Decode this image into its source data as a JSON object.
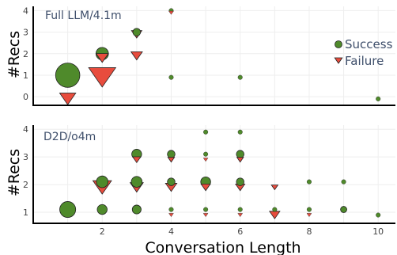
{
  "chart_data": {
    "type": "scatter",
    "xlabel": "Conversation Length",
    "ylabel": "#Recs",
    "xlim": [
      0,
      10.5
    ],
    "x_ticks": [
      2,
      4,
      6,
      8,
      10
    ],
    "grid": true,
    "legend_position": "right of top panel",
    "marker_size_meaning": "number of conversations",
    "colors": {
      "Success": "#4f8a2b",
      "Failure": "#e84c3d"
    },
    "legend": [
      {
        "label": "Success",
        "marker": "circle"
      },
      {
        "label": "Failure",
        "marker": "triangle-down"
      }
    ],
    "panels": [
      {
        "title": "Full LLM/4.1m",
        "ylim": [
          -0.4,
          4.2
        ],
        "y_ticks": [
          0,
          1,
          2,
          3,
          4
        ],
        "series": [
          {
            "name": "Success",
            "points": [
              {
                "x": 1,
                "y": 1,
                "size": 30
              },
              {
                "x": 2,
                "y": 2,
                "size": 8
              },
              {
                "x": 3,
                "y": 3,
                "size": 3
              },
              {
                "x": 4,
                "y": 4,
                "size": 1
              },
              {
                "x": 4,
                "y": 0.9,
                "size": 1
              },
              {
                "x": 6,
                "y": 0.9,
                "size": 1
              },
              {
                "x": 10,
                "y": -0.1,
                "size": 1
              }
            ]
          },
          {
            "name": "Failure",
            "points": [
              {
                "x": 1,
                "y": -0.1,
                "size": 12
              },
              {
                "x": 2,
                "y": 0.9,
                "size": 34
              },
              {
                "x": 2,
                "y": 1.8,
                "size": 7
              },
              {
                "x": 3,
                "y": 2.9,
                "size": 5
              },
              {
                "x": 3,
                "y": 1.9,
                "size": 6
              },
              {
                "x": 4,
                "y": 3.9,
                "size": 1
              }
            ]
          }
        ]
      },
      {
        "title": "D2D/o4m",
        "ylim": [
          0.6,
          4.15
        ],
        "y_ticks": [
          1,
          2,
          3,
          4
        ],
        "series": [
          {
            "name": "Success",
            "points": [
              {
                "x": 1,
                "y": 1.1,
                "size": 13
              },
              {
                "x": 2,
                "y": 2.1,
                "size": 7
              },
              {
                "x": 2,
                "y": 1.1,
                "size": 5
              },
              {
                "x": 3,
                "y": 3.1,
                "size": 5
              },
              {
                "x": 3,
                "y": 2.1,
                "size": 6
              },
              {
                "x": 3,
                "y": 1.1,
                "size": 4
              },
              {
                "x": 4,
                "y": 3.1,
                "size": 3
              },
              {
                "x": 4,
                "y": 2.1,
                "size": 3
              },
              {
                "x": 4,
                "y": 1.1,
                "size": 1
              },
              {
                "x": 5,
                "y": 3.9,
                "size": 1
              },
              {
                "x": 5,
                "y": 3.1,
                "size": 1
              },
              {
                "x": 5,
                "y": 2.1,
                "size": 5
              },
              {
                "x": 5,
                "y": 1.1,
                "size": 1
              },
              {
                "x": 6,
                "y": 3.9,
                "size": 1
              },
              {
                "x": 6,
                "y": 3.1,
                "size": 3
              },
              {
                "x": 6,
                "y": 2.1,
                "size": 3
              },
              {
                "x": 6,
                "y": 1.1,
                "size": 1
              },
              {
                "x": 7,
                "y": 1.1,
                "size": 1
              },
              {
                "x": 8,
                "y": 2.1,
                "size": 1
              },
              {
                "x": 8,
                "y": 1.1,
                "size": 1
              },
              {
                "x": 9,
                "y": 2.1,
                "size": 1
              },
              {
                "x": 9,
                "y": 1.1,
                "size": 2
              },
              {
                "x": 10,
                "y": 0.9,
                "size": 1
              }
            ]
          },
          {
            "name": "Failure",
            "points": [
              {
                "x": 2,
                "y": 1.9,
                "size": 16
              },
              {
                "x": 3,
                "y": 2.9,
                "size": 3
              },
              {
                "x": 3,
                "y": 1.9,
                "size": 8
              },
              {
                "x": 4,
                "y": 2.9,
                "size": 2
              },
              {
                "x": 4,
                "y": 1.9,
                "size": 6
              },
              {
                "x": 4,
                "y": 0.9,
                "size": 1
              },
              {
                "x": 5,
                "y": 2.9,
                "size": 1
              },
              {
                "x": 5,
                "y": 1.9,
                "size": 4
              },
              {
                "x": 5,
                "y": 0.9,
                "size": 1
              },
              {
                "x": 6,
                "y": 2.9,
                "size": 2
              },
              {
                "x": 6,
                "y": 1.9,
                "size": 4
              },
              {
                "x": 6,
                "y": 0.9,
                "size": 1
              },
              {
                "x": 7,
                "y": 1.9,
                "size": 2
              },
              {
                "x": 7,
                "y": 0.9,
                "size": 5
              },
              {
                "x": 8,
                "y": 0.9,
                "size": 1
              }
            ]
          }
        ]
      }
    ]
  }
}
